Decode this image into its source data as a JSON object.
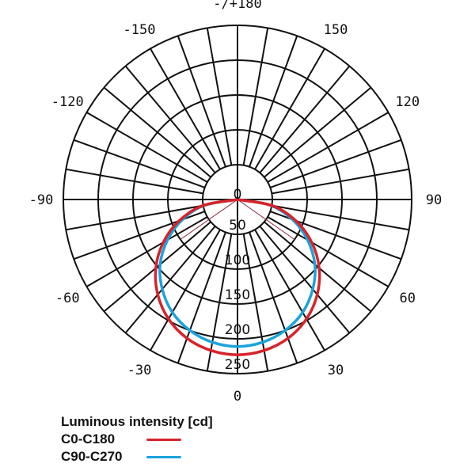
{
  "chart_data": {
    "type": "polar",
    "title": "",
    "unit": "cd",
    "radial_ticks": [
      0,
      50,
      100,
      150,
      200,
      250
    ],
    "radial_max": 250,
    "angle_labels": [
      {
        "text": "-/+180",
        "angle": 180
      },
      {
        "text": "150",
        "angle": 150
      },
      {
        "text": "-150",
        "angle": -150
      },
      {
        "text": "120",
        "angle": 120
      },
      {
        "text": "-120",
        "angle": -120
      },
      {
        "text": "90",
        "angle": 90
      },
      {
        "text": "-90",
        "angle": -90
      },
      {
        "text": "60",
        "angle": 60
      },
      {
        "text": "-60",
        "angle": -60
      },
      {
        "text": "30",
        "angle": 30
      },
      {
        "text": "-30",
        "angle": -30
      },
      {
        "text": "0",
        "angle": 0
      }
    ],
    "spoke_step_deg": 10,
    "angles": [
      0,
      10,
      20,
      30,
      40,
      50,
      60,
      70,
      80,
      90
    ],
    "series": [
      {
        "name": "C0-C180",
        "color": "#d8232a",
        "values": [
          223,
          220,
          212,
          198,
          178,
          153,
          123,
          89,
          51,
          0
        ]
      },
      {
        "name": "C90-C270",
        "color": "#1aa3dc",
        "values": [
          211,
          208,
          200,
          187,
          168,
          145,
          116,
          84,
          48,
          0
        ]
      }
    ],
    "beam_angle_lines": {
      "color": "#8b2a3a",
      "angle": 55,
      "length_cd": 100
    },
    "legend": {
      "title": "Luminous intensity [cd]",
      "position": "bottom-left"
    }
  },
  "legend": {
    "title": "Luminous intensity [cd]",
    "items": [
      {
        "label": "C0-C180",
        "color": "#d8232a"
      },
      {
        "label": "C90-C270",
        "color": "#1aa3dc"
      }
    ]
  }
}
